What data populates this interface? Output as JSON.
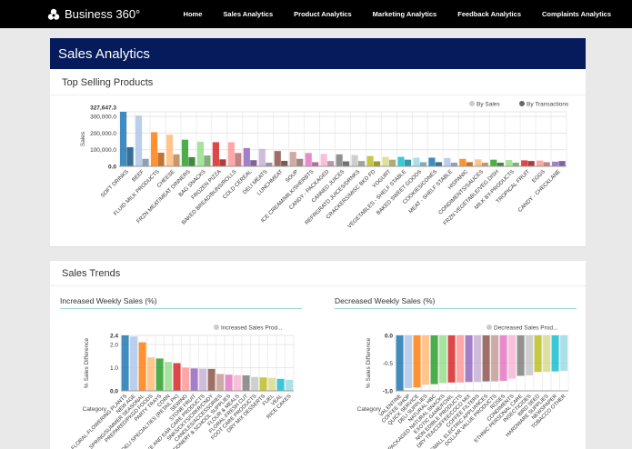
{
  "header": {
    "brand": "Business 360°",
    "nav": [
      "Home",
      "Sales Analytics",
      "Product Analytics",
      "Marketing Analytics",
      "Feedback Analytics",
      "Complaints Analytics"
    ]
  },
  "page_title": "Sales Analytics",
  "top_selling": {
    "title": "Top Selling Products"
  },
  "trends": {
    "title": "Sales Trends",
    "increased_title": "Increased Weekly Sales (%)",
    "decreased_title": "Decreased Weekly Sales (%)"
  },
  "palette": [
    "#1f77b4",
    "#aec7e8",
    "#ff7f0e",
    "#ffbb78",
    "#2ca02c",
    "#98df8a",
    "#d62728",
    "#ff9896",
    "#9467bd",
    "#c5b0d5",
    "#8c564b",
    "#c49c94",
    "#e377c2",
    "#f7b6d2",
    "#7f7f7f",
    "#c7c7c7",
    "#bcbd22",
    "#dbdb8d",
    "#17becf",
    "#9edae5"
  ],
  "chart_data": [
    {
      "type": "bar",
      "ylabel": "Sales",
      "ylim": [
        0,
        327647.3
      ],
      "yticks": [
        "0.0",
        "100,000.0",
        "200,000.0",
        "300,000.0",
        "327,647.3"
      ],
      "legend_position": "top-right",
      "categories": [
        "SOFT DRINKS",
        "BEEF",
        "FLUID MILK PRODUCTS",
        "CHEESE",
        "FRZN MEAT/MEAT DINNERS",
        "BAG SNACKS",
        "FROZEN PIZZA",
        "BAKED BREAD/BUNS/ROLLS",
        "COLD CEREAL",
        "DELI MEATS",
        "LUNCHMEAT",
        "SOUP",
        "ICE CREAM/MILK/SHERBTS",
        "CANDY - PACKAGED",
        "CANNED JUICES",
        "REFRGRATD JUICES/DRNKS",
        "CRACKERS/MISC BKD FD",
        "YOGURT",
        "VEGETABLES - SHELF STABLE",
        "BAKED SWEET GOODS",
        "COOKIES/CONES",
        "MEAT - SHELF STABLE",
        "HISPANIC",
        "CONDIMENTS/SAUCES",
        "FRZN VEGETABLE/VEG DISH",
        "MILK BY-PRODUCTS",
        "TROPICAL FRUIT",
        "EGGS",
        "CANDY - CHECKLANE"
      ],
      "series": [
        {
          "name": "By Sales",
          "values": [
            327647.3,
            305000,
            205000,
            190000,
            160000,
            148000,
            145000,
            145000,
            110000,
            105000,
            92000,
            87000,
            80000,
            75000,
            72000,
            68000,
            62000,
            57000,
            57000,
            52000,
            52000,
            50000,
            45000,
            42000,
            40000,
            38000,
            36000,
            35000,
            28000
          ]
        },
        {
          "name": "By Transactions",
          "values": [
            115000,
            45000,
            82000,
            72000,
            55000,
            65000,
            42000,
            80000,
            37000,
            22000,
            33000,
            45000,
            25000,
            32000,
            30000,
            32000,
            30000,
            40000,
            40000,
            25000,
            25000,
            22000,
            25000,
            22000,
            22000,
            22000,
            32000,
            25000,
            32000
          ]
        }
      ]
    },
    {
      "type": "bar",
      "ylabel": "% Sales Difference",
      "xlabel": "Category",
      "ylim": [
        0,
        2.4
      ],
      "yticks": [
        "0.0",
        "1.0",
        "2.0",
        "2.4"
      ],
      "legend_position": "top-right",
      "categories": [
        "FLORAL-FLOWERING PLANTS",
        "NEW AGE",
        "SPRING/SUMMER SEASONAL",
        "PREPARED/PKGD FOODS",
        "PARTY TRAYS",
        "CORN",
        "DELI SPECIALTIES (RETAIL PK)",
        "SEWING",
        "STONE FRUIT",
        "EYE AND EAR CARE PRODUCTS",
        "SNKS/CKYS/CRKR/CNDY",
        "CANDLES/ACCESSORIES",
        "STATIONERY & SCHOOL SUPPLIES",
        "FLOUR & MEALS",
        "FLORAL-FRESH CUT",
        "FOOT CARE PRODUCTS",
        "DRY MIX DESSERTS",
        "FUEL",
        "VEAL",
        "RICE CAKES"
      ],
      "series": [
        {
          "name": "Increased Sales Prod...",
          "values": [
            2.4,
            2.35,
            2.1,
            1.45,
            1.4,
            1.25,
            1.2,
            1.0,
            0.97,
            0.96,
            0.95,
            0.73,
            0.7,
            0.68,
            0.67,
            0.6,
            0.58,
            0.56,
            0.52,
            0.48
          ]
        }
      ]
    },
    {
      "type": "bar",
      "ylabel": "% Sales Difference",
      "xlabel": "Category",
      "ylim": [
        -1.0,
        0
      ],
      "yticks": [
        "-1.0",
        "-0.5",
        "0.0"
      ],
      "legend_position": "top-right",
      "categories": [
        "VALENTINE",
        "COFFEE SHOP",
        "QUICK SERVICE",
        "DELI SUPPLIES",
        "NATURAL HBC",
        "PACKAGED NATURAL SNACKS",
        "EXOTIC GAME/FOWL",
        "NON EDIBLE PRODUCTS",
        "DRY TEA/COFFEE/COCO MIX",
        "COFFEE FILTERS",
        "SMALL ELECTRIC APPLIANCES",
        "DOLLAR VALUE PRODUCTS",
        "ROSES",
        "CONDIMENTS",
        "ETHNIC PERSONAL CARE",
        "INSECTICIDES",
        "BIRD SEED",
        "HARDWARE SUPPLIES",
        "NEWSPAPER",
        "TOBACCO OTHER"
      ],
      "series": [
        {
          "name": "Decreased Sales Prod...",
          "values": [
            -1.0,
            -0.95,
            -0.94,
            -0.89,
            -0.88,
            -0.86,
            -0.85,
            -0.85,
            -0.84,
            -0.84,
            -0.83,
            -0.83,
            -0.82,
            -0.78,
            -0.73,
            -0.72,
            -0.66,
            -0.66,
            -0.65,
            -0.64
          ]
        }
      ]
    }
  ]
}
